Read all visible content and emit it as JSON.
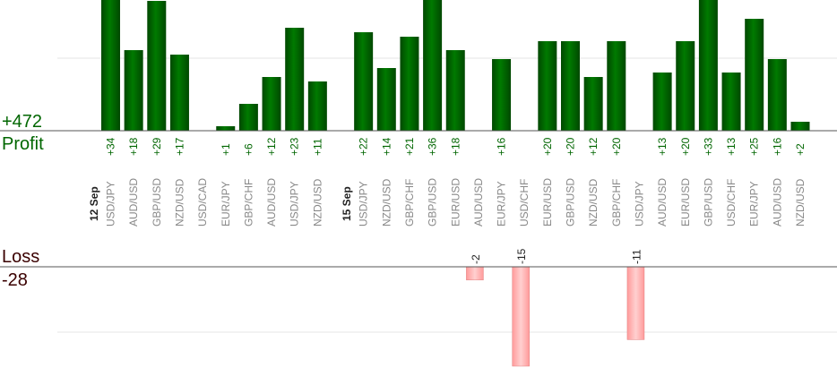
{
  "profit": {
    "label": "Profit",
    "total": "+472",
    "color": "#006600"
  },
  "loss": {
    "label": "Loss",
    "total": "-28",
    "color": "#ff9999"
  },
  "chart_data": {
    "type": "bar",
    "groups": [
      {
        "date": "12 Sep",
        "items": [
          {
            "pair": "USD/JPY",
            "value": 34
          },
          {
            "pair": "AUD/USD",
            "value": 18
          },
          {
            "pair": "GBP/USD",
            "value": 29
          },
          {
            "pair": "NZD/USD",
            "value": 17
          },
          {
            "pair": "USD/CAD",
            "value": null
          },
          {
            "pair": "EUR/JPY",
            "value": 1
          },
          {
            "pair": "GBP/CHF",
            "value": 6
          },
          {
            "pair": "AUD/USD",
            "value": 12
          },
          {
            "pair": "USD/JPY",
            "value": 23
          },
          {
            "pair": "NZD/USD",
            "value": 11
          }
        ]
      },
      {
        "date": "15 Sep",
        "items": [
          {
            "pair": "USD/JPY",
            "value": 22
          },
          {
            "pair": "NZD/USD",
            "value": 14
          },
          {
            "pair": "GBP/CHF",
            "value": 21
          },
          {
            "pair": "GBP/USD",
            "value": 36
          },
          {
            "pair": "EUR/USD",
            "value": 18
          },
          {
            "pair": "AUD/USD",
            "value": -2
          },
          {
            "pair": "EUR/JPY",
            "value": 16
          },
          {
            "pair": "USD/CHF",
            "value": -15
          },
          {
            "pair": "EUR/USD",
            "value": 20
          },
          {
            "pair": "GBP/USD",
            "value": 20
          },
          {
            "pair": "NZD/USD",
            "value": 12
          },
          {
            "pair": "GBP/CHF",
            "value": 20
          },
          {
            "pair": "USD/JPY",
            "value": -11
          },
          {
            "pair": "AUD/USD",
            "value": 13
          },
          {
            "pair": "EUR/USD",
            "value": 20
          },
          {
            "pair": "GBP/USD",
            "value": 33
          },
          {
            "pair": "USD/CHF",
            "value": 13
          },
          {
            "pair": "EUR/JPY",
            "value": 25
          },
          {
            "pair": "AUD/USD",
            "value": 16
          },
          {
            "pair": "NZD/USD",
            "value": 2
          }
        ]
      }
    ],
    "grid": true,
    "colors": {
      "profit": "#006600",
      "loss": "#ffaaaa",
      "profit_text": "#006600",
      "tick_text": "#888888"
    }
  }
}
